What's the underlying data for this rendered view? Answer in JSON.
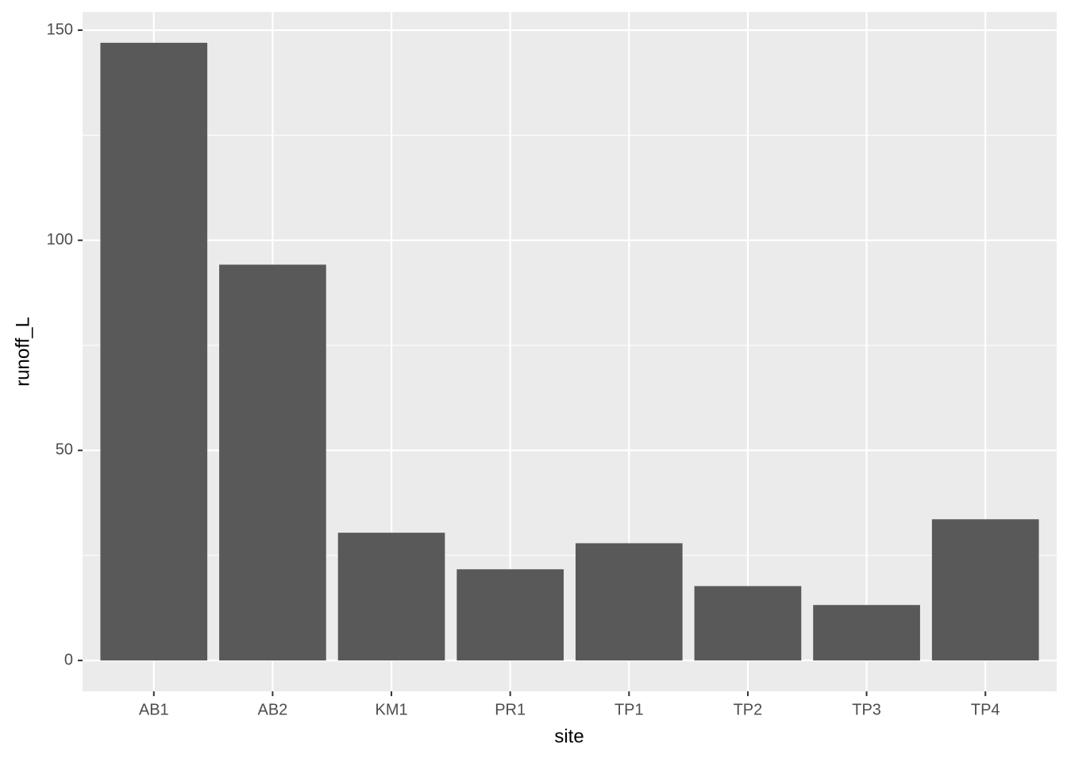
{
  "chart_data": {
    "type": "bar",
    "x_label": "site",
    "y_label": "runoff_L",
    "categories": [
      "AB1",
      "AB2",
      "KM1",
      "PR1",
      "TP1",
      "TP2",
      "TP3",
      "TP4"
    ],
    "values": [
      147,
      94.2,
      30.4,
      21.7,
      27.9,
      17.7,
      13.2,
      33.6
    ],
    "color": "#595959",
    "ylim": [
      -7.35,
      154.35
    ],
    "yticks": [
      0,
      50,
      100,
      150
    ],
    "yminorticks": [
      25,
      75,
      125
    ],
    "grid": true
  }
}
